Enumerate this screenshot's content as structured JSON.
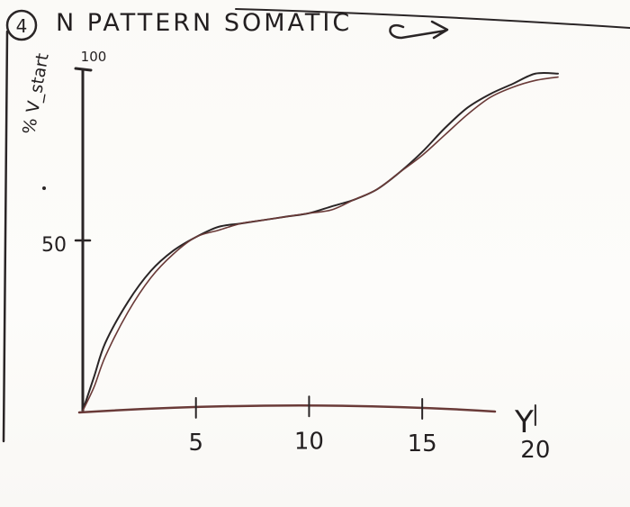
{
  "figure": {
    "number": "4",
    "title": "N PATTERN SOMATIC",
    "arrow": "arrow-right-icon"
  },
  "chart_data": {
    "type": "line",
    "title": "N PATTERN SOMATIC",
    "xlabel": "Y",
    "ylabel": "% V_start",
    "xlim": [
      0,
      21
    ],
    "ylim": [
      0,
      100
    ],
    "x_ticks": [
      5,
      10,
      15,
      20
    ],
    "x_tick_labels": [
      "5",
      "10",
      "15",
      "20"
    ],
    "y_ticks": [
      50,
      100
    ],
    "y_tick_labels": [
      "50",
      "100"
    ],
    "grid": false,
    "series": [
      {
        "x": [
          0,
          0.5,
          1,
          2,
          3,
          4,
          5,
          6,
          7,
          8,
          9,
          10,
          11,
          12,
          13,
          14,
          15,
          16,
          17,
          18,
          19,
          20,
          21
        ],
        "y": [
          0,
          10,
          20,
          32,
          41,
          47,
          51,
          54,
          55,
          56,
          57,
          58,
          60,
          62,
          65,
          70,
          76,
          83,
          89,
          93,
          96,
          99,
          99
        ],
        "color": "#2a2526"
      },
      {
        "x": [
          0,
          0.5,
          1,
          2,
          3,
          4,
          5,
          6,
          7,
          8,
          9,
          10,
          11,
          12,
          13,
          14,
          15,
          16,
          17,
          18,
          19,
          20,
          21
        ],
        "y": [
          0,
          7,
          16,
          29,
          39,
          46,
          51,
          53,
          55,
          56,
          57,
          58,
          59,
          62,
          65,
          70,
          75,
          81,
          87,
          92,
          95,
          97,
          98
        ],
        "color": "#6a3a38"
      }
    ]
  },
  "colors": {
    "ink": "#2a2526",
    "ink_red": "#6a3a38",
    "paper": "#fdfcfa"
  }
}
